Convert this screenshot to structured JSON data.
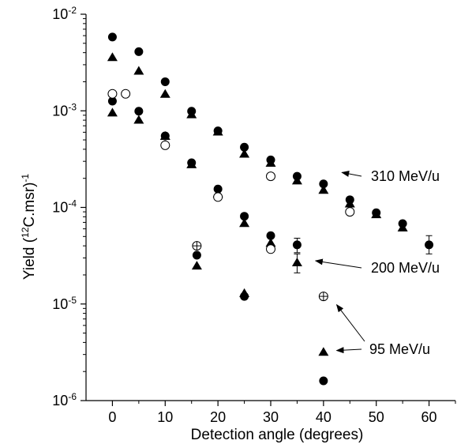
{
  "chart_data": {
    "type": "scatter",
    "title": "",
    "x_axis": {
      "title": "Detection angle (degrees)",
      "range": [
        -5,
        65
      ],
      "ticks": [
        0,
        10,
        20,
        30,
        40,
        50,
        60
      ],
      "tick_labels": [
        "0",
        "10",
        "20",
        "30",
        "40",
        "50",
        "60"
      ],
      "minor_ticks": [
        5,
        15,
        25,
        35,
        45,
        55,
        65
      ]
    },
    "y_axis": {
      "title_main": "Yield (",
      "title_sup": "12",
      "title_mid": "C.msr)",
      "title_sup2": "-1",
      "scale": "log",
      "range": [
        1e-06,
        0.01
      ],
      "ticks": [
        {
          "value": 0.01,
          "base": "10",
          "exp": "-2"
        },
        {
          "value": 0.001,
          "base": "10",
          "exp": "-3"
        },
        {
          "value": 0.0001,
          "base": "10",
          "exp": "-4"
        },
        {
          "value": 1e-05,
          "base": "10",
          "exp": "-5"
        },
        {
          "value": 1e-06,
          "base": "10",
          "exp": "-6"
        }
      ]
    },
    "grid": false,
    "legend": "none",
    "marker_color": "#000000",
    "series": [
      {
        "marker": "filled-circle",
        "points": [
          {
            "x": 0,
            "y": 0.0058
          },
          {
            "x": 5,
            "y": 0.0041
          },
          {
            "x": 10,
            "y": 0.002
          },
          {
            "x": 15,
            "y": 0.00099
          },
          {
            "x": 20,
            "y": 0.00062
          },
          {
            "x": 25,
            "y": 0.00042
          },
          {
            "x": 30,
            "y": 0.00031
          },
          {
            "x": 35,
            "y": 0.00021
          },
          {
            "x": 40,
            "y": 0.000175
          },
          {
            "x": 45,
            "y": 0.00012
          },
          {
            "x": 50,
            "y": 8.8e-05
          },
          {
            "x": 55,
            "y": 6.8e-05
          },
          {
            "x": 60,
            "y": 4.1e-05,
            "err": [
              3.3e-05,
              5.1e-05
            ]
          },
          {
            "x": 0,
            "y": 0.00126
          },
          {
            "x": 5,
            "y": 0.00099
          },
          {
            "x": 10,
            "y": 0.00055
          },
          {
            "x": 15,
            "y": 0.00029
          },
          {
            "x": 20,
            "y": 0.000155
          },
          {
            "x": 25,
            "y": 8.1e-05
          },
          {
            "x": 30,
            "y": 5.1e-05
          },
          {
            "x": 35,
            "y": 4.1e-05,
            "err": [
              3.4e-05,
              4.8e-05
            ]
          },
          {
            "x": 16,
            "y": 3.2e-05
          },
          {
            "x": 25,
            "y": 1.2e-05
          },
          {
            "x": 40,
            "y": 1.6e-06
          }
        ]
      },
      {
        "marker": "filled-triangle",
        "points": [
          {
            "x": 0,
            "y": 0.0036
          },
          {
            "x": 5,
            "y": 0.0026
          },
          {
            "x": 10,
            "y": 0.0015
          },
          {
            "x": 15,
            "y": 0.00092
          },
          {
            "x": 20,
            "y": 0.00061
          },
          {
            "x": 25,
            "y": 0.00036
          },
          {
            "x": 30,
            "y": 0.00029
          },
          {
            "x": 35,
            "y": 0.00019
          },
          {
            "x": 40,
            "y": 0.000152
          },
          {
            "x": 45,
            "y": 0.00011
          },
          {
            "x": 50,
            "y": 8.5e-05
          },
          {
            "x": 55,
            "y": 6.2e-05
          },
          {
            "x": 0,
            "y": 0.00096
          },
          {
            "x": 5,
            "y": 0.00081
          },
          {
            "x": 10,
            "y": 0.00055
          },
          {
            "x": 15,
            "y": 0.00028
          },
          {
            "x": 20,
            "y": 0.00014
          },
          {
            "x": 25,
            "y": 6.9e-05
          },
          {
            "x": 30,
            "y": 4.3e-05
          },
          {
            "x": 35,
            "y": 2.7e-05,
            "err": [
              2.1e-05,
              3.3e-05
            ]
          },
          {
            "x": 16,
            "y": 2.5e-05
          },
          {
            "x": 25,
            "y": 1.3e-05
          },
          {
            "x": 40,
            "y": 3.2e-06
          }
        ]
      },
      {
        "marker": "open-circle",
        "points": [
          {
            "x": 0,
            "y": 0.0015
          },
          {
            "x": 2.5,
            "y": 0.0015
          },
          {
            "x": 10,
            "y": 0.00044
          },
          {
            "x": 20,
            "y": 0.000128
          },
          {
            "x": 30,
            "y": 0.00021
          },
          {
            "x": 30,
            "y": 3.7e-05
          },
          {
            "x": 45,
            "y": 9e-05
          }
        ]
      },
      {
        "marker": "crossed-circle",
        "points": [
          {
            "x": 16,
            "y": 4e-05
          },
          {
            "x": 40,
            "y": 1.2e-05
          }
        ]
      }
    ],
    "annotations": [
      {
        "text": "310 MeV/u",
        "target": {
          "x": 42,
          "y": 0.00023
        }
      },
      {
        "text": "200 MeV/u",
        "target": {
          "x": 37,
          "y": 2.8e-05
        }
      },
      {
        "text": "95 MeV/u",
        "target": {
          "x": 41,
          "y": 3.3e-06
        }
      },
      {
        "text": "95 MeV/u",
        "target": {
          "x": 41,
          "y": 1.1e-05
        }
      }
    ]
  }
}
